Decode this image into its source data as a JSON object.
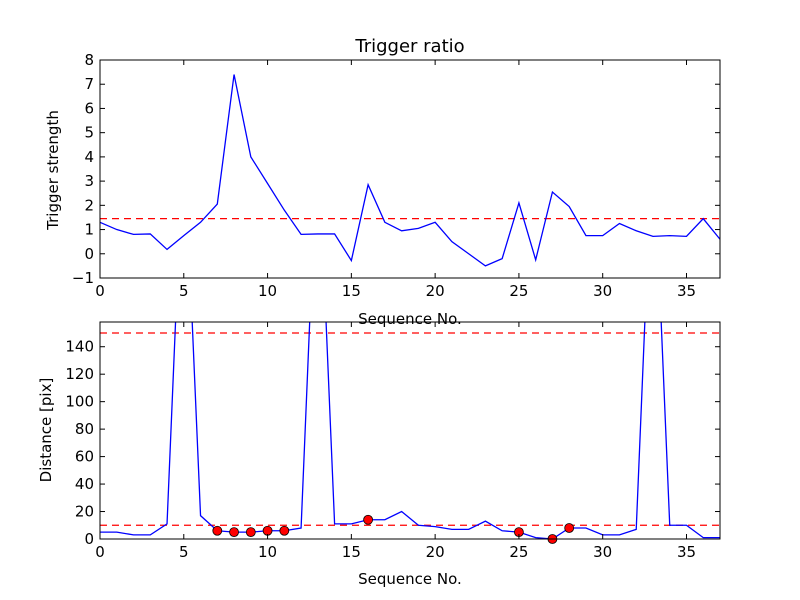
{
  "chart_data": [
    {
      "type": "line",
      "title": "Trigger ratio",
      "xlabel": "Sequence No.",
      "ylabel": "Trigger strength",
      "xlim": [
        0,
        37
      ],
      "ylim": [
        -1,
        8
      ],
      "xticks": [
        0,
        5,
        10,
        15,
        20,
        25,
        30,
        35
      ],
      "yticks": [
        -1,
        0,
        1,
        2,
        3,
        4,
        5,
        6,
        7,
        8
      ],
      "grid": false,
      "series": [
        {
          "color": "#0000ff",
          "style": "solid",
          "x": [
            0,
            1,
            2,
            3,
            4,
            5,
            6,
            7,
            8,
            9,
            10,
            11,
            12,
            13,
            14,
            15,
            16,
            17,
            18,
            19,
            20,
            21,
            22,
            23,
            24,
            25,
            26,
            27,
            28,
            29,
            30,
            31,
            32,
            33,
            34,
            35,
            36,
            37
          ],
          "y": [
            1.3,
            1.0,
            0.8,
            0.82,
            0.18,
            0.75,
            1.3,
            2.05,
            7.4,
            4.0,
            2.9,
            1.8,
            0.8,
            0.82,
            0.82,
            -0.28,
            2.85,
            1.3,
            0.95,
            1.05,
            1.3,
            0.5,
            0.0,
            -0.5,
            -0.2,
            2.1,
            -0.25,
            2.55,
            1.95,
            0.75,
            0.75,
            1.25,
            0.95,
            0.72,
            0.75,
            0.72,
            1.45,
            0.6
          ]
        }
      ],
      "reference_lines": [
        {
          "y": 1.45,
          "color": "#ff0000",
          "style": "dashed"
        }
      ],
      "markers": []
    },
    {
      "type": "line",
      "title": "",
      "xlabel": "Sequence No.",
      "ylabel": "Distance [pix]",
      "xlim": [
        0,
        37
      ],
      "ylim": [
        0,
        158
      ],
      "xticks": [
        0,
        5,
        10,
        15,
        20,
        25,
        30,
        35
      ],
      "yticks": [
        0,
        20,
        40,
        60,
        80,
        100,
        120,
        140
      ],
      "grid": false,
      "series": [
        {
          "color": "#0000ff",
          "style": "solid",
          "x": [
            0,
            1,
            2,
            3,
            4,
            5,
            6,
            7,
            8,
            9,
            10,
            11,
            12,
            13,
            14,
            15,
            16,
            17,
            18,
            19,
            20,
            21,
            22,
            23,
            24,
            25,
            26,
            27,
            28,
            29,
            30,
            31,
            32,
            33,
            34,
            35,
            36,
            37
          ],
          "y": [
            5,
            5,
            3,
            3,
            11,
            300,
            17,
            6,
            5,
            5,
            6,
            6,
            8,
            300,
            11,
            11,
            14,
            14,
            20,
            10,
            9,
            7,
            7,
            13,
            6,
            5,
            1,
            0,
            8,
            8,
            3,
            3,
            7,
            300,
            10,
            10,
            1,
            1
          ]
        }
      ],
      "reference_lines": [
        {
          "y": 150,
          "color": "#ff0000",
          "style": "dashed"
        },
        {
          "y": 10,
          "color": "#ff0000",
          "style": "dashed"
        }
      ],
      "markers": [
        {
          "x": 7,
          "y": 6,
          "color": "#ff0000"
        },
        {
          "x": 8,
          "y": 5,
          "color": "#ff0000"
        },
        {
          "x": 9,
          "y": 5,
          "color": "#ff0000"
        },
        {
          "x": 10,
          "y": 6,
          "color": "#ff0000"
        },
        {
          "x": 11,
          "y": 6,
          "color": "#ff0000"
        },
        {
          "x": 16,
          "y": 14,
          "color": "#ff0000"
        },
        {
          "x": 25,
          "y": 5,
          "color": "#ff0000"
        },
        {
          "x": 27,
          "y": 0,
          "color": "#ff0000"
        },
        {
          "x": 28,
          "y": 8,
          "color": "#ff0000"
        }
      ]
    }
  ]
}
